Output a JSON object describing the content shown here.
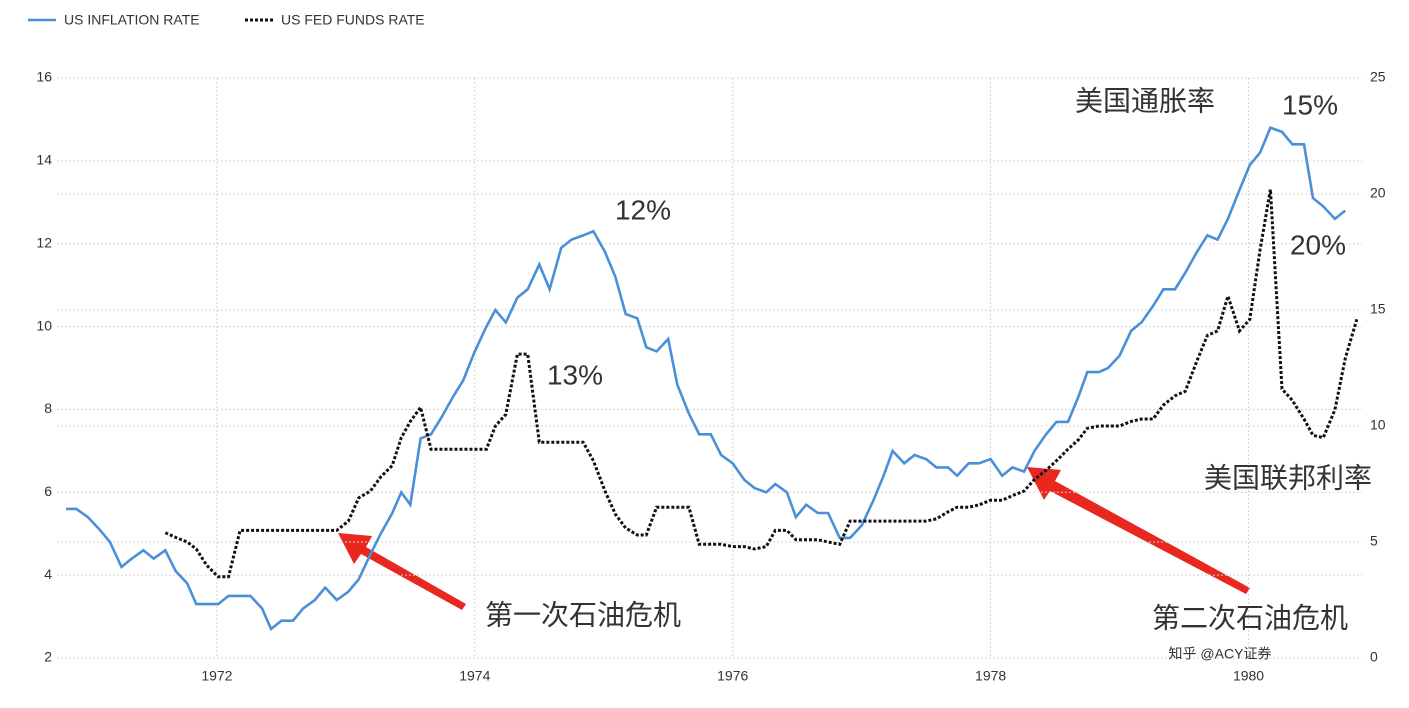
{
  "chart_data": {
    "type": "line",
    "legend": "top-left",
    "grid": true,
    "xlim": [
      1970.76,
      1980.88
    ],
    "xticks": [
      1972,
      1974,
      1976,
      1978,
      1980
    ],
    "ylim": [
      2,
      16
    ],
    "yticks": [
      2,
      4,
      6,
      8,
      10,
      12,
      14,
      16
    ],
    "y2lim": [
      0,
      25
    ],
    "y2ticks": [
      0,
      5,
      10,
      15,
      20,
      25
    ],
    "x": [
      1970.83,
      1970.91,
      1971.0,
      1971.09,
      1971.17,
      1971.26,
      1971.34,
      1971.43,
      1971.51,
      1971.6,
      1971.68,
      1971.77,
      1971.84,
      1971.92,
      1972.01,
      1972.09,
      1972.18,
      1972.26,
      1972.35,
      1972.42,
      1972.5,
      1972.59,
      1972.67,
      1972.76,
      1972.84,
      1972.93,
      1973.02,
      1973.1,
      1973.19,
      1973.27,
      1973.36,
      1973.43,
      1973.5,
      1973.58,
      1973.66,
      1973.74,
      1973.83,
      1973.91,
      1974.0,
      1974.09,
      1974.16,
      1974.24,
      1974.33,
      1974.41,
      1974.5,
      1974.58,
      1974.67,
      1974.75,
      1974.84,
      1974.92,
      1975.01,
      1975.09,
      1975.17,
      1975.26,
      1975.33,
      1975.41,
      1975.5,
      1975.57,
      1975.66,
      1975.74,
      1975.83,
      1975.91,
      1976.0,
      1976.09,
      1976.17,
      1976.26,
      1976.33,
      1976.42,
      1976.49,
      1976.57,
      1976.66,
      1976.74,
      1976.83,
      1976.91,
      1977.0,
      1977.09,
      1977.17,
      1977.24,
      1977.33,
      1977.41,
      1977.5,
      1977.58,
      1977.67,
      1977.74,
      1977.83,
      1977.91,
      1978.0,
      1978.09,
      1978.17,
      1978.26,
      1978.34,
      1978.43,
      1978.51,
      1978.6,
      1978.68,
      1978.75,
      1978.84,
      1978.91,
      1979.0,
      1979.09,
      1979.17,
      1979.26,
      1979.34,
      1979.43,
      1979.51,
      1979.6,
      1979.68,
      1979.76,
      1979.84,
      1979.93,
      1980.01,
      1980.09,
      1980.17,
      1980.26,
      1980.34,
      1980.43,
      1980.5,
      1980.58,
      1980.67,
      1980.75,
      1980.84
    ],
    "series": [
      {
        "name": "US INFLATION RATE",
        "color": "#4a90d9",
        "axis": "y",
        "values": [
          5.6,
          5.6,
          5.4,
          5.1,
          4.8,
          4.2,
          4.4,
          4.6,
          4.4,
          4.6,
          4.1,
          3.8,
          3.3,
          3.3,
          3.3,
          3.5,
          3.5,
          3.5,
          3.2,
          2.7,
          2.9,
          2.9,
          3.2,
          3.4,
          3.7,
          3.4,
          3.6,
          3.9,
          4.5,
          5.0,
          5.5,
          6.0,
          5.7,
          7.3,
          7.4,
          7.8,
          8.3,
          8.7,
          9.4,
          10.0,
          10.4,
          10.1,
          10.7,
          10.9,
          11.5,
          10.9,
          11.9,
          12.1,
          12.2,
          12.3,
          11.8,
          11.2,
          10.3,
          10.2,
          9.5,
          9.4,
          9.7,
          8.6,
          7.9,
          7.4,
          7.4,
          6.9,
          6.7,
          6.3,
          6.1,
          6.0,
          6.2,
          6.0,
          5.4,
          5.7,
          5.5,
          5.5,
          4.9,
          4.9,
          5.2,
          5.8,
          6.4,
          7.0,
          6.7,
          6.9,
          6.8,
          6.6,
          6.6,
          6.4,
          6.7,
          6.7,
          6.8,
          6.4,
          6.6,
          6.5,
          7.0,
          7.4,
          7.7,
          7.7,
          8.3,
          8.9,
          8.9,
          9.0,
          9.3,
          9.9,
          10.1,
          10.5,
          10.9,
          10.9,
          11.3,
          11.8,
          12.2,
          12.1,
          12.6,
          13.3,
          13.9,
          14.2,
          14.8,
          14.7,
          14.4,
          14.4,
          13.1,
          12.9,
          12.6,
          12.8,
          null
        ]
      },
      {
        "name": "US FED FUNDS RATE",
        "color": "#111111",
        "axis": "y2",
        "dashed": true,
        "values": [
          null,
          null,
          null,
          null,
          null,
          null,
          null,
          null,
          null,
          5.4,
          5.2,
          5.0,
          4.7,
          4.0,
          3.5,
          3.5,
          5.5,
          5.5,
          5.5,
          5.5,
          5.5,
          5.5,
          5.5,
          5.5,
          5.5,
          5.5,
          5.9,
          6.9,
          7.2,
          7.8,
          8.3,
          9.5,
          10.2,
          10.8,
          9.0,
          9.0,
          9.0,
          9.0,
          9.0,
          9.0,
          10.0,
          10.5,
          13.1,
          13.1,
          9.3,
          9.3,
          9.3,
          9.3,
          9.3,
          8.5,
          7.2,
          6.2,
          5.6,
          5.3,
          5.3,
          6.5,
          6.5,
          6.5,
          6.5,
          4.9,
          4.9,
          4.9,
          4.8,
          4.8,
          4.7,
          4.8,
          5.5,
          5.5,
          5.1,
          5.1,
          5.1,
          5.0,
          4.9,
          5.9,
          5.9,
          5.9,
          5.9,
          5.9,
          5.9,
          5.9,
          5.9,
          6.0,
          6.3,
          6.5,
          6.5,
          6.6,
          6.8,
          6.8,
          7.0,
          7.2,
          7.7,
          8.1,
          8.5,
          9.0,
          9.4,
          9.9,
          10.0,
          10.0,
          10.0,
          10.2,
          10.3,
          10.3,
          10.9,
          11.3,
          11.5,
          12.8,
          13.9,
          14.1,
          15.6,
          14.1,
          14.6,
          17.6,
          20.2,
          11.6,
          11.1,
          10.3,
          9.6,
          9.5,
          10.7,
          12.9,
          14.6
        ]
      }
    ],
    "annotations": [
      {
        "text": "12%",
        "color": "#2f9be0"
      },
      {
        "text": "15%",
        "color": "#2f9be0"
      },
      {
        "text": "美国通胀率",
        "color": "#2f9be0"
      },
      {
        "text": "13%",
        "color": "#333333"
      },
      {
        "text": "20%",
        "color": "#333333"
      },
      {
        "text": "美国联邦利率",
        "color": "#333333"
      },
      {
        "text": "第一次石油危机",
        "color": "#e8281e"
      },
      {
        "text": "第二次石油危机",
        "color": "#e8281e"
      }
    ],
    "watermark": "知乎 @ACY证券"
  }
}
